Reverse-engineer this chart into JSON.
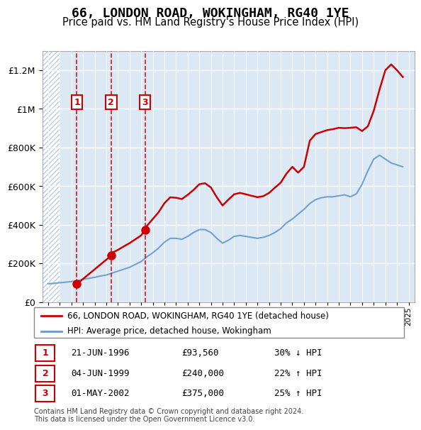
{
  "title": "66, LONDON ROAD, WOKINGHAM, RG40 1YE",
  "subtitle": "Price paid vs. HM Land Registry's House Price Index (HPI)",
  "footer": "Contains HM Land Registry data © Crown copyright and database right 2024.\nThis data is licensed under the Open Government Licence v3.0.",
  "legend_line1": "66, LONDON ROAD, WOKINGHAM, RG40 1YE (detached house)",
  "legend_line2": "HPI: Average price, detached house, Wokingham",
  "transactions": [
    {
      "num": 1,
      "date": "21-JUN-1996",
      "price": 93560,
      "pct": "30%",
      "dir": "↓"
    },
    {
      "num": 2,
      "date": "04-JUN-1999",
      "price": 240000,
      "pct": "22%",
      "dir": "↑"
    },
    {
      "num": 3,
      "date": "01-MAY-2002",
      "price": 375000,
      "pct": "25%",
      "dir": "↑"
    }
  ],
  "sale_years": [
    1996.47,
    1999.42,
    2002.33
  ],
  "sale_prices": [
    93560,
    240000,
    375000
  ],
  "hpi_years": [
    1994.0,
    1994.5,
    1995.0,
    1995.5,
    1996.0,
    1996.5,
    1997.0,
    1997.5,
    1998.0,
    1998.5,
    1999.0,
    1999.5,
    2000.0,
    2000.5,
    2001.0,
    2001.5,
    2002.0,
    2002.5,
    2003.0,
    2003.5,
    2004.0,
    2004.5,
    2005.0,
    2005.5,
    2006.0,
    2006.5,
    2007.0,
    2007.5,
    2008.0,
    2008.5,
    2009.0,
    2009.5,
    2010.0,
    2010.5,
    2011.0,
    2011.5,
    2012.0,
    2012.5,
    2013.0,
    2013.5,
    2014.0,
    2014.5,
    2015.0,
    2015.5,
    2016.0,
    2016.5,
    2017.0,
    2017.5,
    2018.0,
    2018.5,
    2019.0,
    2019.5,
    2020.0,
    2020.5,
    2021.0,
    2021.5,
    2022.0,
    2022.5,
    2023.0,
    2023.5,
    2024.0,
    2024.5
  ],
  "hpi_prices": [
    95000,
    97000,
    100000,
    103000,
    106000,
    110000,
    118000,
    123000,
    128000,
    135000,
    140000,
    150000,
    160000,
    170000,
    180000,
    195000,
    210000,
    235000,
    255000,
    280000,
    310000,
    330000,
    330000,
    325000,
    340000,
    360000,
    375000,
    375000,
    360000,
    330000,
    305000,
    320000,
    340000,
    345000,
    340000,
    335000,
    330000,
    335000,
    345000,
    360000,
    380000,
    410000,
    430000,
    455000,
    480000,
    510000,
    530000,
    540000,
    545000,
    545000,
    550000,
    555000,
    545000,
    560000,
    610000,
    680000,
    740000,
    760000,
    740000,
    720000,
    710000,
    700000
  ],
  "red_line_years": [
    1996.47,
    1999.42,
    1999.5,
    2000.0,
    2000.5,
    2001.0,
    2001.5,
    2002.0,
    2002.33,
    2002.5,
    2003.0,
    2003.5,
    2004.0,
    2004.5,
    2005.0,
    2005.5,
    2006.0,
    2006.5,
    2007.0,
    2007.5,
    2008.0,
    2008.5,
    2009.0,
    2009.5,
    2010.0,
    2010.5,
    2011.0,
    2011.5,
    2012.0,
    2012.5,
    2013.0,
    2013.5,
    2014.0,
    2014.5,
    2015.0,
    2015.5,
    2016.0,
    2016.5,
    2017.0,
    2017.5,
    2018.0,
    2018.5,
    2019.0,
    2019.5,
    2020.0,
    2020.5,
    2021.0,
    2021.5,
    2022.0,
    2022.5,
    2023.0,
    2023.5,
    2024.0,
    2024.5
  ],
  "red_line_prices": [
    93560,
    240000,
    255000,
    270000,
    288000,
    305000,
    325000,
    345000,
    375000,
    395000,
    430000,
    465000,
    512000,
    542000,
    540000,
    533000,
    555000,
    580000,
    610000,
    615000,
    593000,
    543000,
    500000,
    530000,
    558000,
    565000,
    558000,
    550000,
    543000,
    548000,
    565000,
    592000,
    618000,
    665000,
    700000,
    670000,
    700000,
    835000,
    870000,
    880000,
    890000,
    895000,
    902000,
    900000,
    902000,
    905000,
    885000,
    910000,
    990000,
    1100000,
    1200000,
    1230000,
    1200000,
    1165000
  ],
  "ylim": [
    0,
    1300000
  ],
  "xlim": [
    1993.5,
    2025.5
  ],
  "background_color": "#dce9f5",
  "hatch_color": "#b8cfe0",
  "red_color": "#cc0000",
  "blue_color": "#6699cc",
  "title_fontsize": 13,
  "subtitle_fontsize": 10.5
}
